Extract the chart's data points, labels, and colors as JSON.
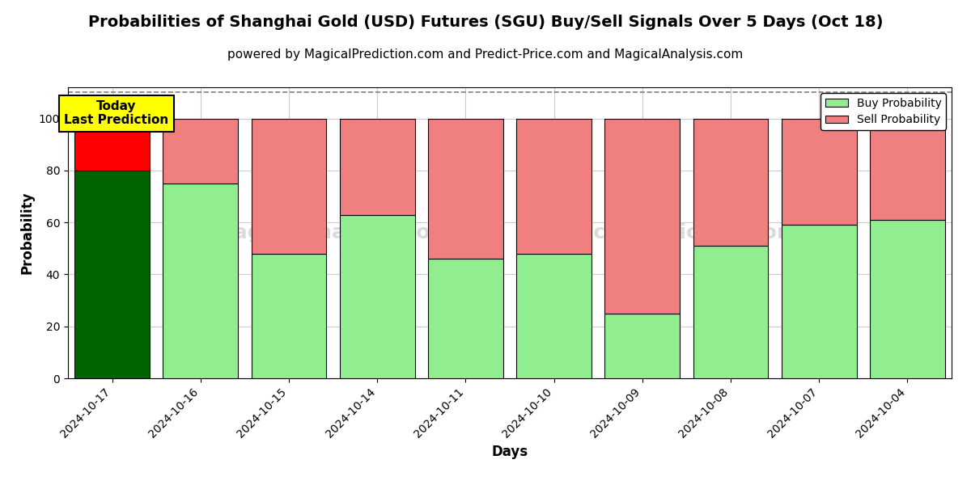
{
  "title": "Probabilities of Shanghai Gold (USD) Futures (SGU) Buy/Sell Signals Over 5 Days (Oct 18)",
  "subtitle": "powered by MagicalPrediction.com and Predict-Price.com and MagicalAnalysis.com",
  "xlabel": "Days",
  "ylabel": "Probability",
  "categories": [
    "2024-10-17",
    "2024-10-16",
    "2024-10-15",
    "2024-10-14",
    "2024-10-11",
    "2024-10-10",
    "2024-10-09",
    "2024-10-08",
    "2024-10-07",
    "2024-10-04"
  ],
  "buy_values": [
    80,
    75,
    48,
    63,
    46,
    48,
    25,
    51,
    59,
    61
  ],
  "sell_values": [
    20,
    25,
    52,
    37,
    54,
    52,
    75,
    49,
    41,
    39
  ],
  "buy_color_today": "#006400",
  "sell_color_today": "#FF0000",
  "buy_color_normal": "#90EE90",
  "sell_color_normal": "#F08080",
  "today_label_bg": "#FFFF00",
  "today_label_text": "Today\nLast Prediction",
  "legend_buy": "Buy Probability",
  "legend_sell": "Sell Probability",
  "ylim": [
    0,
    112
  ],
  "yticks": [
    0,
    20,
    40,
    60,
    80,
    100
  ],
  "dashed_line_y": 110,
  "background_color": "#ffffff",
  "grid_color": "#cccccc",
  "bar_edge_color": "#000000",
  "title_fontsize": 14,
  "subtitle_fontsize": 11,
  "axis_label_fontsize": 12,
  "tick_fontsize": 10,
  "bar_width": 0.85
}
